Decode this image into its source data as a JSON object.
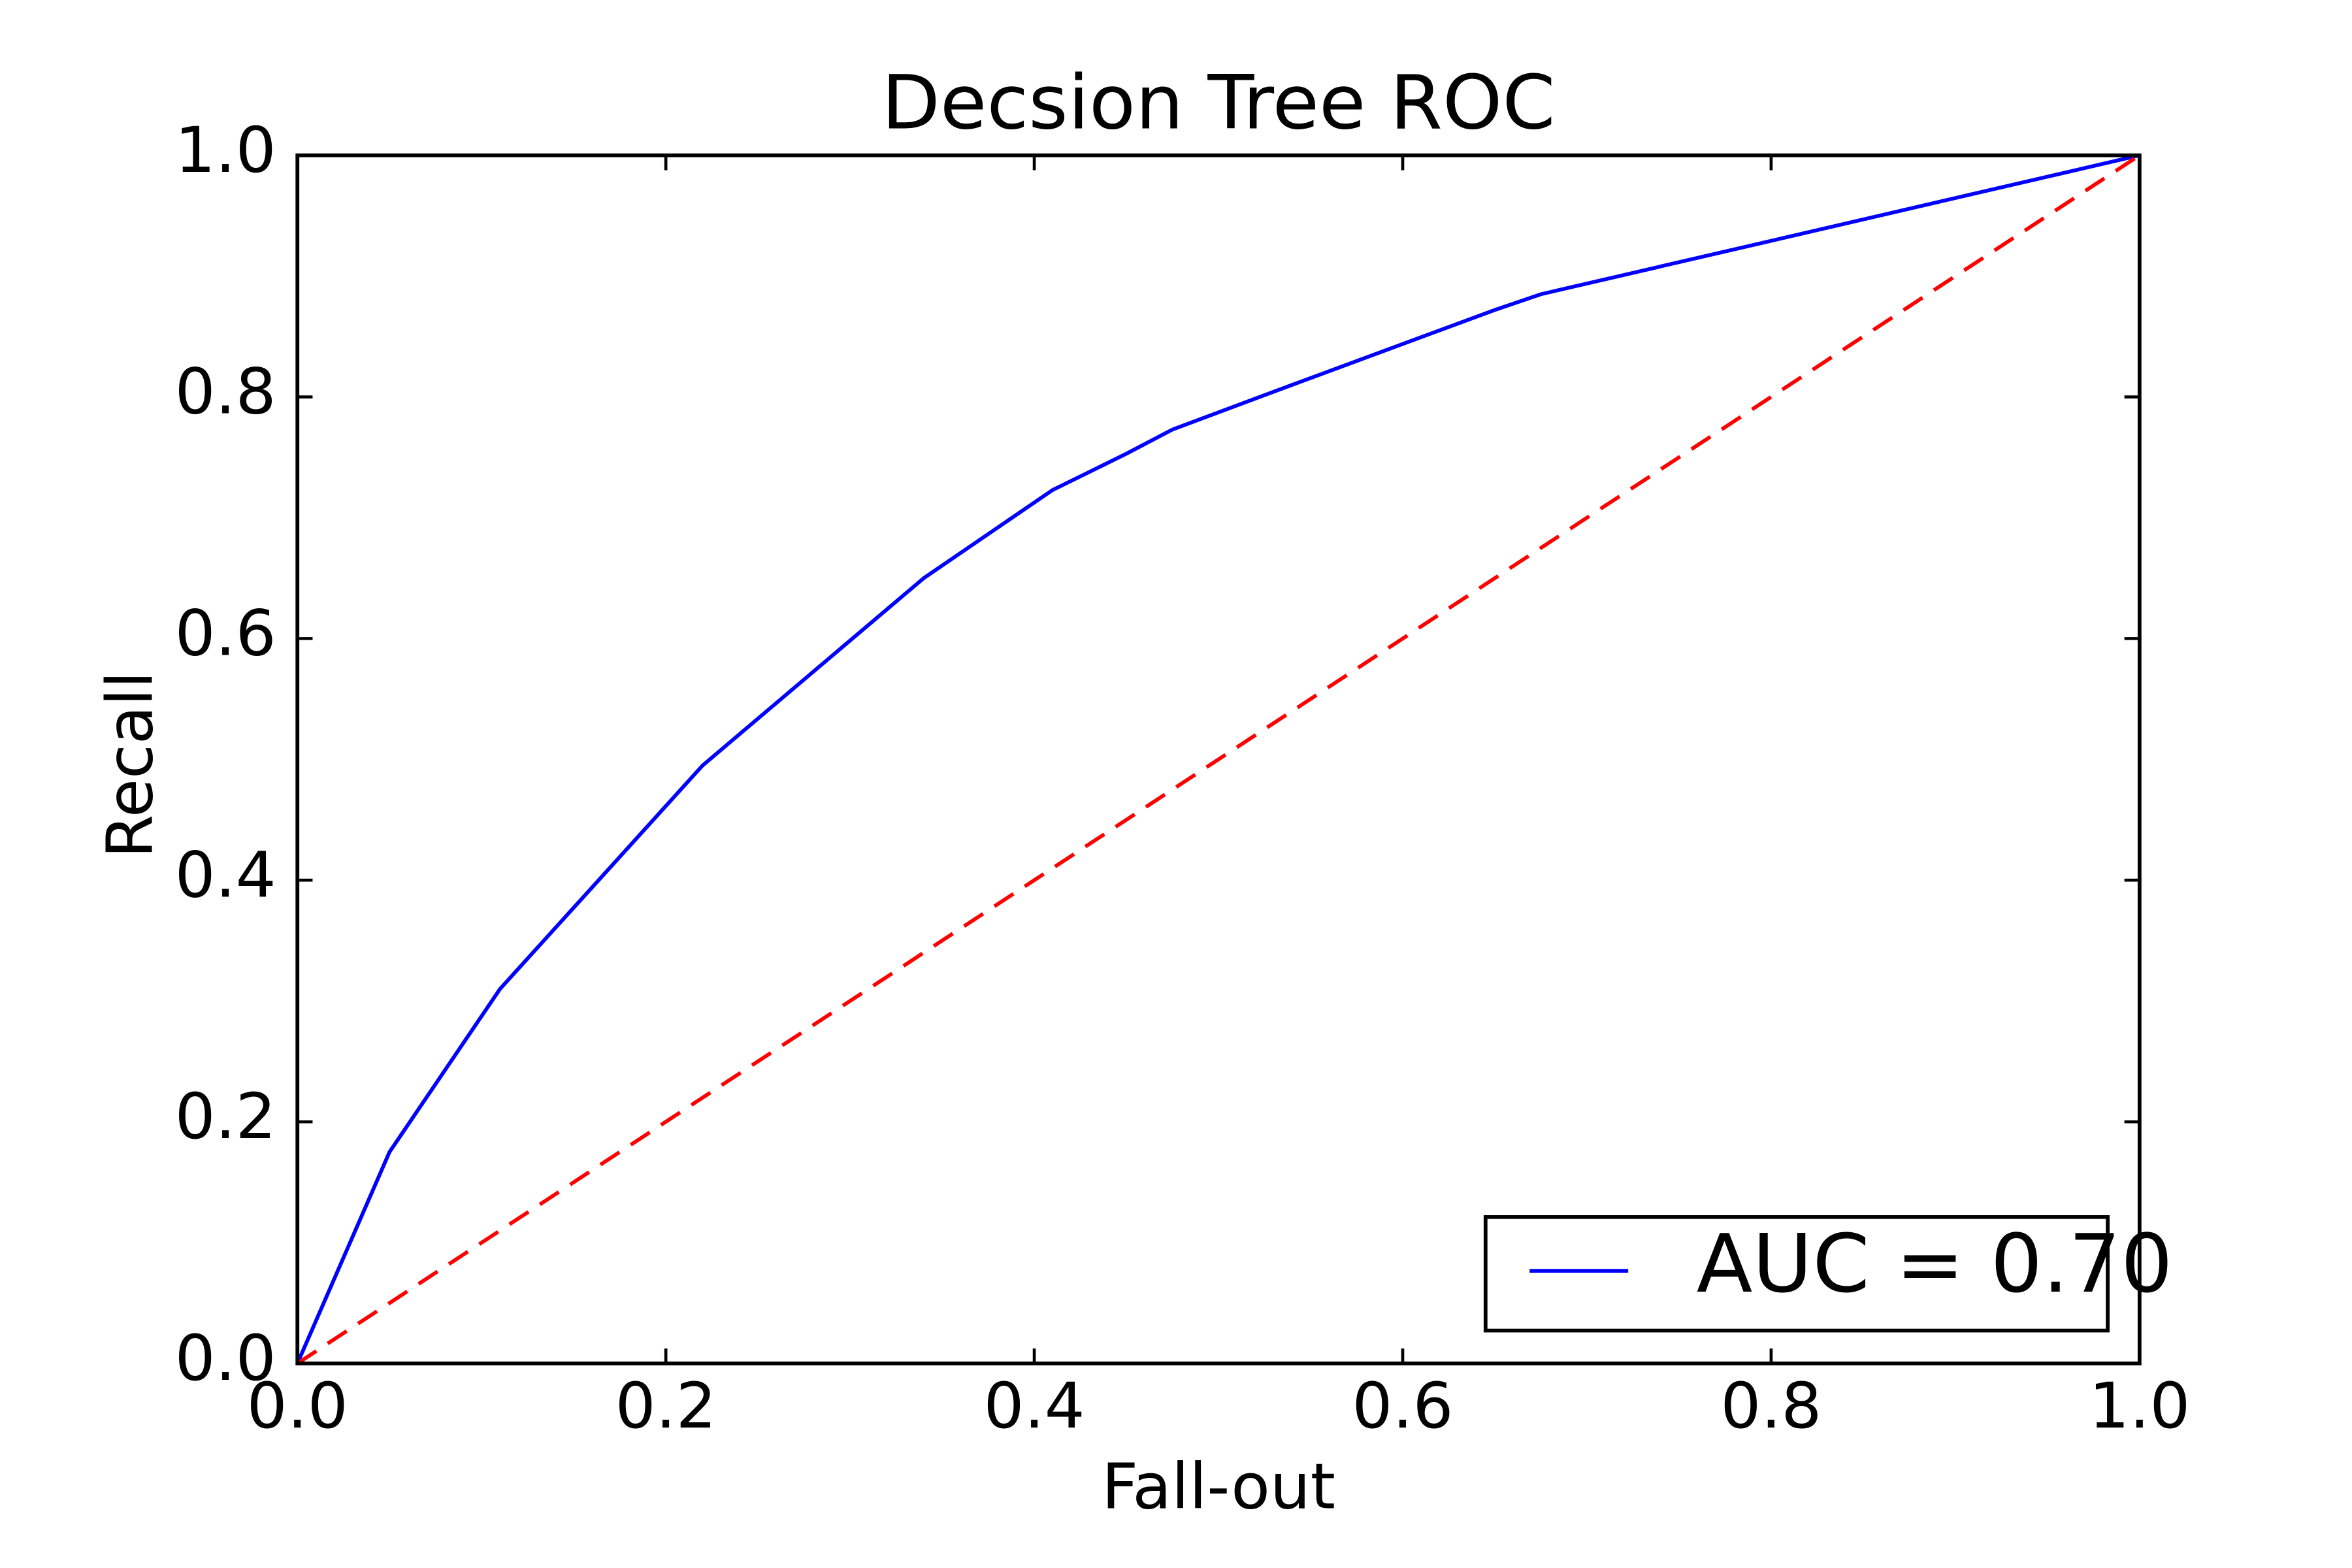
{
  "chart_data": {
    "type": "line",
    "title": "Decsion Tree ROC",
    "xlabel": "Fall-out",
    "ylabel": "Recall",
    "xlim": [
      0.0,
      1.0
    ],
    "ylim": [
      0.0,
      1.0
    ],
    "xticks": [
      "0.0",
      "0.2",
      "0.4",
      "0.6",
      "0.8",
      "1.0"
    ],
    "yticks": [
      "0.0",
      "0.2",
      "0.4",
      "0.6",
      "0.8",
      "1.0"
    ],
    "grid": false,
    "legend_position": "lower-right",
    "series": [
      {
        "name": "AUC = 0.70",
        "color": "#0000ff",
        "style": "solid",
        "points": [
          [
            0.0,
            0.0
          ],
          [
            0.05,
            0.175
          ],
          [
            0.11,
            0.31
          ],
          [
            0.22,
            0.495
          ],
          [
            0.34,
            0.65
          ],
          [
            0.41,
            0.723
          ],
          [
            0.45,
            0.753
          ],
          [
            0.475,
            0.773
          ],
          [
            0.54,
            0.81
          ],
          [
            0.65,
            0.872
          ],
          [
            0.675,
            0.885
          ],
          [
            1.0,
            1.0
          ]
        ]
      },
      {
        "color": "#ff0000",
        "style": "dashed",
        "points": [
          [
            0.0,
            0.0
          ],
          [
            1.0,
            1.0
          ]
        ]
      }
    ]
  }
}
